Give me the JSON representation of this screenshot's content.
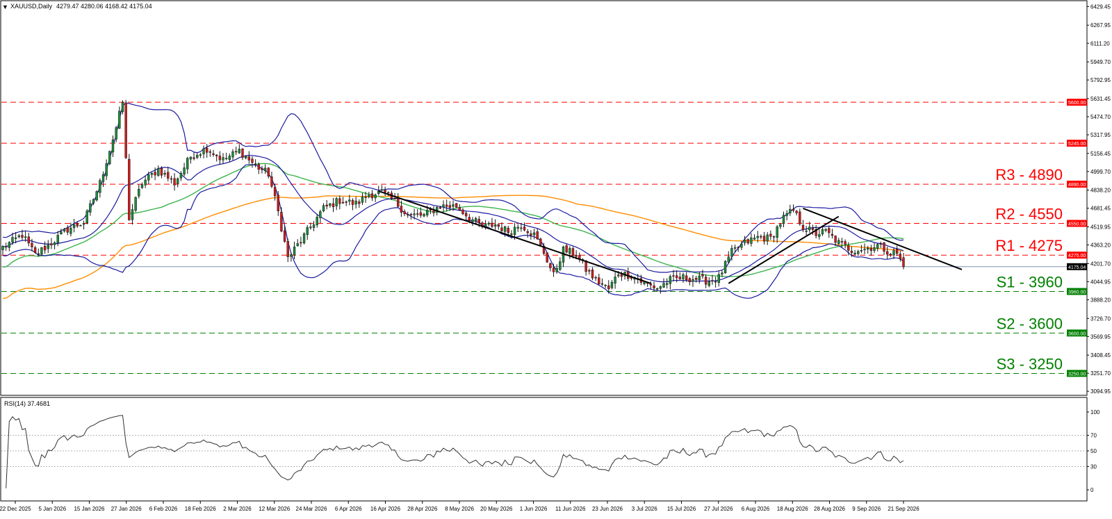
{
  "header": {
    "symbol": "XAUUSD,Daily",
    "ohlc": "4279.47 4280.06 4168.42 4175.04",
    "menu_icon": "triangle-down-icon"
  },
  "rsi_header": "RSI(14) 37.4681",
  "colors": {
    "bull": "#1e8c3a",
    "bear": "#d01c1c",
    "bollinger": "#1a1aa0",
    "ma_green": "#3cb44b",
    "ma_orange": "#ff8c00",
    "resistance": "#ff0000",
    "support": "#008000",
    "trendline": "#000000",
    "rsi": "#333333",
    "price_line": "#6b7fa0"
  },
  "chart_data": [
    {
      "type": "candlestick",
      "title": "XAUUSD,Daily",
      "x_tick_labels": [
        "22 Dec 2025",
        "5 Jan 2026",
        "15 Jan 2026",
        "27 Jan 2026",
        "6 Feb 2026",
        "18 Feb 2026",
        "2 Mar 2026",
        "12 Mar 2026",
        "24 Mar 2026",
        "6 Apr 2026",
        "16 Apr 2026",
        "28 Apr 2026",
        "8 May 2026",
        "20 May 2026",
        "1 Jun 2026",
        "11 Jun 2026",
        "23 Jun 2026",
        "3 Jul 2026",
        "15 Jul 2026",
        "27 Jul 2026",
        "6 Aug 2026",
        "18 Aug 2026",
        "28 Aug 2026",
        "9 Sep 2026",
        "21 Sep 2026"
      ],
      "y_tick_labels": [
        "6429.45",
        "6267.95",
        "6111.20",
        "5949.70",
        "5792.95",
        "5631.45",
        "5474.70",
        "5317.95",
        "5156.45",
        "4999.70",
        "4838.20",
        "4681.45",
        "4519.95",
        "4363.20",
        "4201.70",
        "4044.95",
        "3888.20",
        "3726.70",
        "3569.95",
        "3408.45",
        "3251.70",
        "3094.95"
      ],
      "ylim": [
        3060,
        6480
      ],
      "last_price": 4175.04,
      "last_price_label": "4175.04",
      "levels": [
        {
          "name": "R3",
          "value": 4890,
          "tag": "4890.00",
          "label": "R3 - 4890",
          "kind": "resistance"
        },
        {
          "name": "R2",
          "value": 4550,
          "tag": "4550.00",
          "label": "R2 - 4550",
          "kind": "resistance"
        },
        {
          "name": "R1",
          "value": 4275,
          "tag": "4275.00",
          "label": "R1 - 4275",
          "kind": "resistance"
        },
        {
          "name": "S1",
          "value": 3960,
          "tag": "3960.00",
          "label": "S1 - 3960",
          "kind": "support"
        },
        {
          "name": "S2",
          "value": 3600,
          "tag": "3600.00",
          "label": "S2 - 3600",
          "kind": "support"
        },
        {
          "name": "S3",
          "value": 3250,
          "tag": "3250.00",
          "label": "S3 - 3250",
          "kind": "support"
        },
        {
          "name": "L5245",
          "value": 5245,
          "tag": "5245.00",
          "label": "",
          "kind": "resistance"
        },
        {
          "name": "L5600",
          "value": 5600,
          "tag": "5600.00",
          "label": "",
          "kind": "resistance"
        }
      ],
      "anchors": [
        [
          0,
          4340
        ],
        [
          6,
          4450
        ],
        [
          10,
          4280
        ],
        [
          15,
          4380
        ],
        [
          20,
          4500
        ],
        [
          25,
          4560
        ],
        [
          30,
          4900
        ],
        [
          35,
          5380
        ],
        [
          37,
          5600
        ],
        [
          39,
          4600
        ],
        [
          43,
          4900
        ],
        [
          48,
          5020
        ],
        [
          53,
          4900
        ],
        [
          58,
          5130
        ],
        [
          63,
          5200
        ],
        [
          68,
          5100
        ],
        [
          73,
          5180
        ],
        [
          78,
          5050
        ],
        [
          82,
          4980
        ],
        [
          85,
          4650
        ],
        [
          88,
          4250
        ],
        [
          92,
          4400
        ],
        [
          95,
          4520
        ],
        [
          99,
          4680
        ],
        [
          104,
          4750
        ],
        [
          109,
          4720
        ],
        [
          113,
          4800
        ],
        [
          117,
          4820
        ],
        [
          121,
          4740
        ],
        [
          125,
          4620
        ],
        [
          130,
          4620
        ],
        [
          135,
          4700
        ],
        [
          140,
          4700
        ],
        [
          144,
          4600
        ],
        [
          148,
          4520
        ],
        [
          152,
          4540
        ],
        [
          156,
          4480
        ],
        [
          160,
          4540
        ],
        [
          164,
          4450
        ],
        [
          167,
          4300
        ],
        [
          170,
          4100
        ],
        [
          173,
          4320
        ],
        [
          177,
          4280
        ],
        [
          180,
          4150
        ],
        [
          183,
          4060
        ],
        [
          187,
          3980
        ],
        [
          190,
          4120
        ],
        [
          194,
          4100
        ],
        [
          198,
          4030
        ],
        [
          202,
          3990
        ],
        [
          206,
          4060
        ],
        [
          210,
          4080
        ],
        [
          214,
          4070
        ],
        [
          218,
          4050
        ],
        [
          221,
          4080
        ],
        [
          225,
          4300
        ],
        [
          229,
          4380
        ],
        [
          233,
          4430
        ],
        [
          237,
          4420
        ],
        [
          241,
          4600
        ],
        [
          244,
          4660
        ],
        [
          247,
          4520
        ],
        [
          251,
          4460
        ],
        [
          254,
          4480
        ],
        [
          258,
          4380
        ],
        [
          262,
          4320
        ],
        [
          266,
          4330
        ],
        [
          270,
          4360
        ],
        [
          274,
          4300
        ],
        [
          276,
          4290
        ],
        [
          278,
          4175
        ]
      ],
      "candle_count": 279,
      "trendlines": [
        {
          "from_index": 116,
          "from_value": 4830,
          "to_index": 200,
          "to_value": 4030
        },
        {
          "from_index": 224,
          "from_value": 4030,
          "to_index": 258,
          "to_value": 4610
        },
        {
          "from_index": 247,
          "from_value": 4680,
          "to_index": 296,
          "to_value": 4150
        }
      ],
      "indicators": [
        "Bollinger Bands (upper, middle, lower)",
        "Moving average (green)",
        "Moving average (orange)"
      ],
      "grid": false
    },
    {
      "type": "line",
      "title": "RSI(14) 37.4681",
      "y_tick_labels": [
        "100",
        "70",
        "50",
        "30",
        "0"
      ],
      "ylim": [
        0,
        100
      ],
      "levels": [
        70,
        50,
        30
      ],
      "last_value": 37.4681,
      "grid": false
    }
  ]
}
